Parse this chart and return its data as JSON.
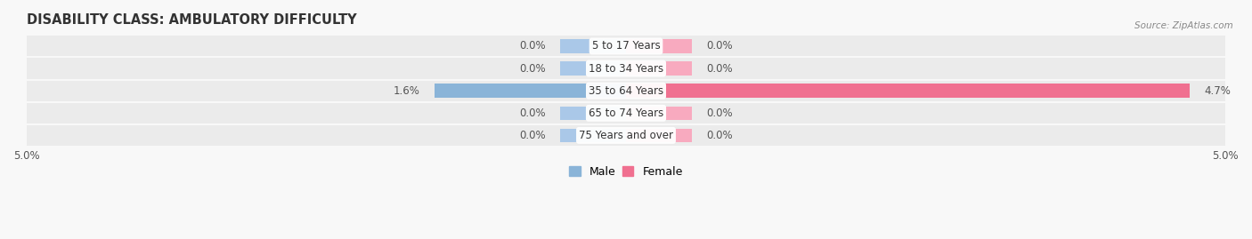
{
  "title": "DISABILITY CLASS: AMBULATORY DIFFICULTY",
  "source": "Source: ZipAtlas.com",
  "categories": [
    "5 to 17 Years",
    "18 to 34 Years",
    "35 to 64 Years",
    "65 to 74 Years",
    "75 Years and over"
  ],
  "male_values": [
    0.0,
    0.0,
    1.6,
    0.0,
    0.0
  ],
  "female_values": [
    0.0,
    0.0,
    4.7,
    0.0,
    0.0
  ],
  "xlim": 5.0,
  "male_color": "#8ab4d8",
  "female_color": "#f07090",
  "male_zero_color": "#aac8e8",
  "female_zero_color": "#f8aabf",
  "row_bg_color": "#ebebeb",
  "row_gap_color": "#f8f8f8",
  "bar_height": 0.62,
  "min_bar_size": 0.55,
  "label_color": "#555555",
  "center_label_color": "#333333",
  "title_fontsize": 10.5,
  "tick_fontsize": 8.5,
  "value_fontsize": 8.5,
  "legend_fontsize": 9,
  "background_color": "#f8f8f8"
}
